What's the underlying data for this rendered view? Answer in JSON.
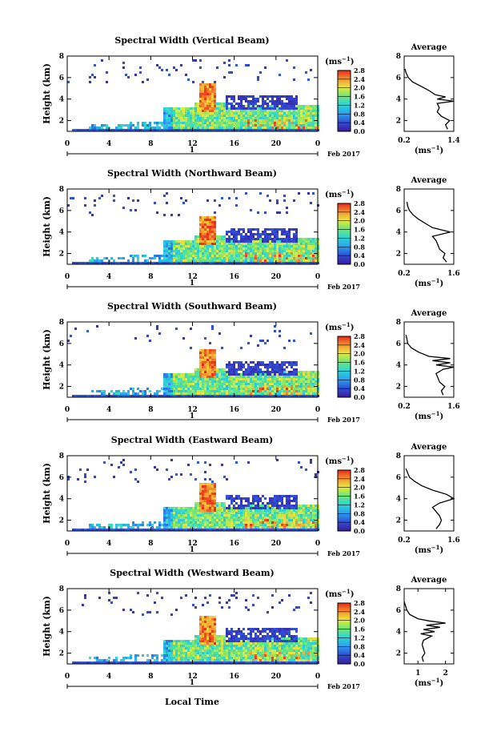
{
  "figure": {
    "xlabel": "Local Time",
    "date_label": "Feb 2017",
    "day_label": "1",
    "colorbar_unit": "(ms",
    "avg_title": "Average",
    "avg_unit": "(ms"
  },
  "chart_data": [
    {
      "type": "heatmap",
      "title": "Spectral Width (Vertical Beam)",
      "ylabel": "Height (km)",
      "xticks": [
        "0",
        "4",
        "8",
        "12",
        "16",
        "20",
        "0"
      ],
      "yticks": [
        "2",
        "4",
        "6",
        "8"
      ],
      "xlim": [
        0,
        24
      ],
      "ylim": [
        1,
        8
      ],
      "colorbar_ticks": [
        "0.0",
        "0.4",
        "0.8",
        "1.2",
        "1.6",
        "2.0",
        "2.4",
        "2.8"
      ],
      "colorbar_range": [
        0,
        2.8
      ],
      "average_profile": {
        "xticks": [
          "0.2",
          "1.4"
        ],
        "xlim": [
          0.2,
          1.4
        ],
        "yticks": [
          "2",
          "4",
          "6",
          "8"
        ],
        "ylim": [
          1,
          8
        ],
        "height_km": [
          1.2,
          1.6,
          2.0,
          2.4,
          2.8,
          3.2,
          3.6,
          3.8,
          4.0,
          4.2,
          4.4,
          4.8,
          5.2,
          5.6,
          6.0,
          6.4,
          6.8
        ],
        "value": [
          1.25,
          1.2,
          1.3,
          1.1,
          1.0,
          1.05,
          1.0,
          1.4,
          1.0,
          1.2,
          0.95,
          0.8,
          0.6,
          0.4,
          0.3,
          0.25,
          0.22
        ]
      }
    },
    {
      "type": "heatmap",
      "title": "Spectral Width (Northward Beam)",
      "ylabel": "Height (km)",
      "xticks": [
        "0",
        "4",
        "8",
        "12",
        "16",
        "20",
        "0"
      ],
      "yticks": [
        "2",
        "4",
        "6",
        "8"
      ],
      "xlim": [
        0,
        24
      ],
      "ylim": [
        1,
        8
      ],
      "colorbar_ticks": [
        "0.0",
        "0.4",
        "0.8",
        "1.2",
        "1.6",
        "2.0",
        "2.4",
        "2.8"
      ],
      "colorbar_range": [
        0,
        2.8
      ],
      "average_profile": {
        "xticks": [
          "0.2",
          "1.6"
        ],
        "xlim": [
          0.2,
          1.6
        ],
        "yticks": [
          "2",
          "4",
          "6",
          "8"
        ],
        "ylim": [
          1,
          8
        ],
        "height_km": [
          1.2,
          1.6,
          2.0,
          2.4,
          2.8,
          3.2,
          3.6,
          4.0,
          4.4,
          4.8,
          5.2,
          5.6,
          6.0,
          6.4,
          6.8
        ],
        "value": [
          1.4,
          1.3,
          1.35,
          1.2,
          1.15,
          1.1,
          1.0,
          1.5,
          1.0,
          0.8,
          0.6,
          0.45,
          0.35,
          0.3,
          0.28
        ]
      }
    },
    {
      "type": "heatmap",
      "title": "Spectral Width (Southward Beam)",
      "ylabel": "Height (km)",
      "xticks": [
        "0",
        "4",
        "8",
        "12",
        "16",
        "20",
        "0"
      ],
      "yticks": [
        "2",
        "4",
        "6",
        "8"
      ],
      "xlim": [
        0,
        24
      ],
      "ylim": [
        1,
        8
      ],
      "colorbar_ticks": [
        "0.0",
        "0.4",
        "0.8",
        "1.2",
        "1.6",
        "2.0",
        "2.4",
        "2.8"
      ],
      "colorbar_range": [
        0,
        2.8
      ],
      "average_profile": {
        "xticks": [
          "0.2",
          "1.6"
        ],
        "xlim": [
          0.2,
          1.6
        ],
        "yticks": [
          "2",
          "4",
          "6",
          "8"
        ],
        "ylim": [
          1,
          8
        ],
        "height_km": [
          1.2,
          1.6,
          2.0,
          2.4,
          2.8,
          3.2,
          3.6,
          3.8,
          4.0,
          4.2,
          4.4,
          4.6,
          4.8,
          5.2,
          5.6,
          6.0,
          6.4,
          6.8
        ],
        "value": [
          1.3,
          1.25,
          1.35,
          1.2,
          1.15,
          1.1,
          1.3,
          1.6,
          1.1,
          1.5,
          1.0,
          1.5,
          0.9,
          0.6,
          0.4,
          0.3,
          0.28,
          0.25
        ]
      }
    },
    {
      "type": "heatmap",
      "title": "Spectral Width (Eastward Beam)",
      "ylabel": "Height (km)",
      "xticks": [
        "0",
        "4",
        "8",
        "12",
        "16",
        "20",
        "0"
      ],
      "yticks": [
        "2",
        "4",
        "6",
        "8"
      ],
      "xlim": [
        0,
        24
      ],
      "ylim": [
        1,
        8
      ],
      "colorbar_ticks": [
        "0.0",
        "0.4",
        "0.8",
        "1.2",
        "1.6",
        "2.0",
        "2.4",
        "2.8"
      ],
      "colorbar_range": [
        0,
        2.8
      ],
      "average_profile": {
        "xticks": [
          "0.2",
          "1.6"
        ],
        "xlim": [
          0.2,
          1.6
        ],
        "yticks": [
          "2",
          "4",
          "6",
          "8"
        ],
        "ylim": [
          1,
          8
        ],
        "height_km": [
          1.2,
          1.6,
          2.0,
          2.4,
          2.8,
          3.2,
          3.6,
          4.0,
          4.4,
          4.8,
          5.2,
          5.6,
          6.0,
          6.4,
          6.8
        ],
        "value": [
          1.1,
          1.2,
          1.25,
          1.2,
          1.1,
          1.0,
          1.2,
          1.6,
          1.4,
          1.0,
          0.7,
          0.5,
          0.35,
          0.3,
          0.25
        ]
      }
    },
    {
      "type": "heatmap",
      "title": "Spectral Width (Westward Beam)",
      "ylabel": "Height (km)",
      "xticks": [
        "0",
        "4",
        "8",
        "12",
        "16",
        "20",
        "0"
      ],
      "yticks": [
        "2",
        "4",
        "6",
        "8"
      ],
      "xlim": [
        0,
        24
      ],
      "ylim": [
        1,
        8
      ],
      "colorbar_ticks": [
        "0.0",
        "0.4",
        "0.8",
        "1.2",
        "1.6",
        "2.0",
        "2.4",
        "2.8"
      ],
      "colorbar_range": [
        0,
        2.8
      ],
      "average_profile": {
        "xticks": [
          "1",
          "2"
        ],
        "xlim": [
          0.5,
          2.3
        ],
        "yticks": [
          "2",
          "4",
          "6",
          "8"
        ],
        "ylim": [
          1,
          8
        ],
        "height_km": [
          1.2,
          1.6,
          2.0,
          2.4,
          2.8,
          3.2,
          3.6,
          3.8,
          4.0,
          4.2,
          4.4,
          4.6,
          4.8,
          5.0,
          5.2,
          5.6,
          6.0,
          6.4,
          6.8
        ],
        "value": [
          1.2,
          1.15,
          1.25,
          1.2,
          1.15,
          1.2,
          1.5,
          1.1,
          1.6,
          1.2,
          1.8,
          1.3,
          2.0,
          1.4,
          1.0,
          0.7,
          0.6,
          0.55,
          0.5
        ]
      }
    }
  ]
}
